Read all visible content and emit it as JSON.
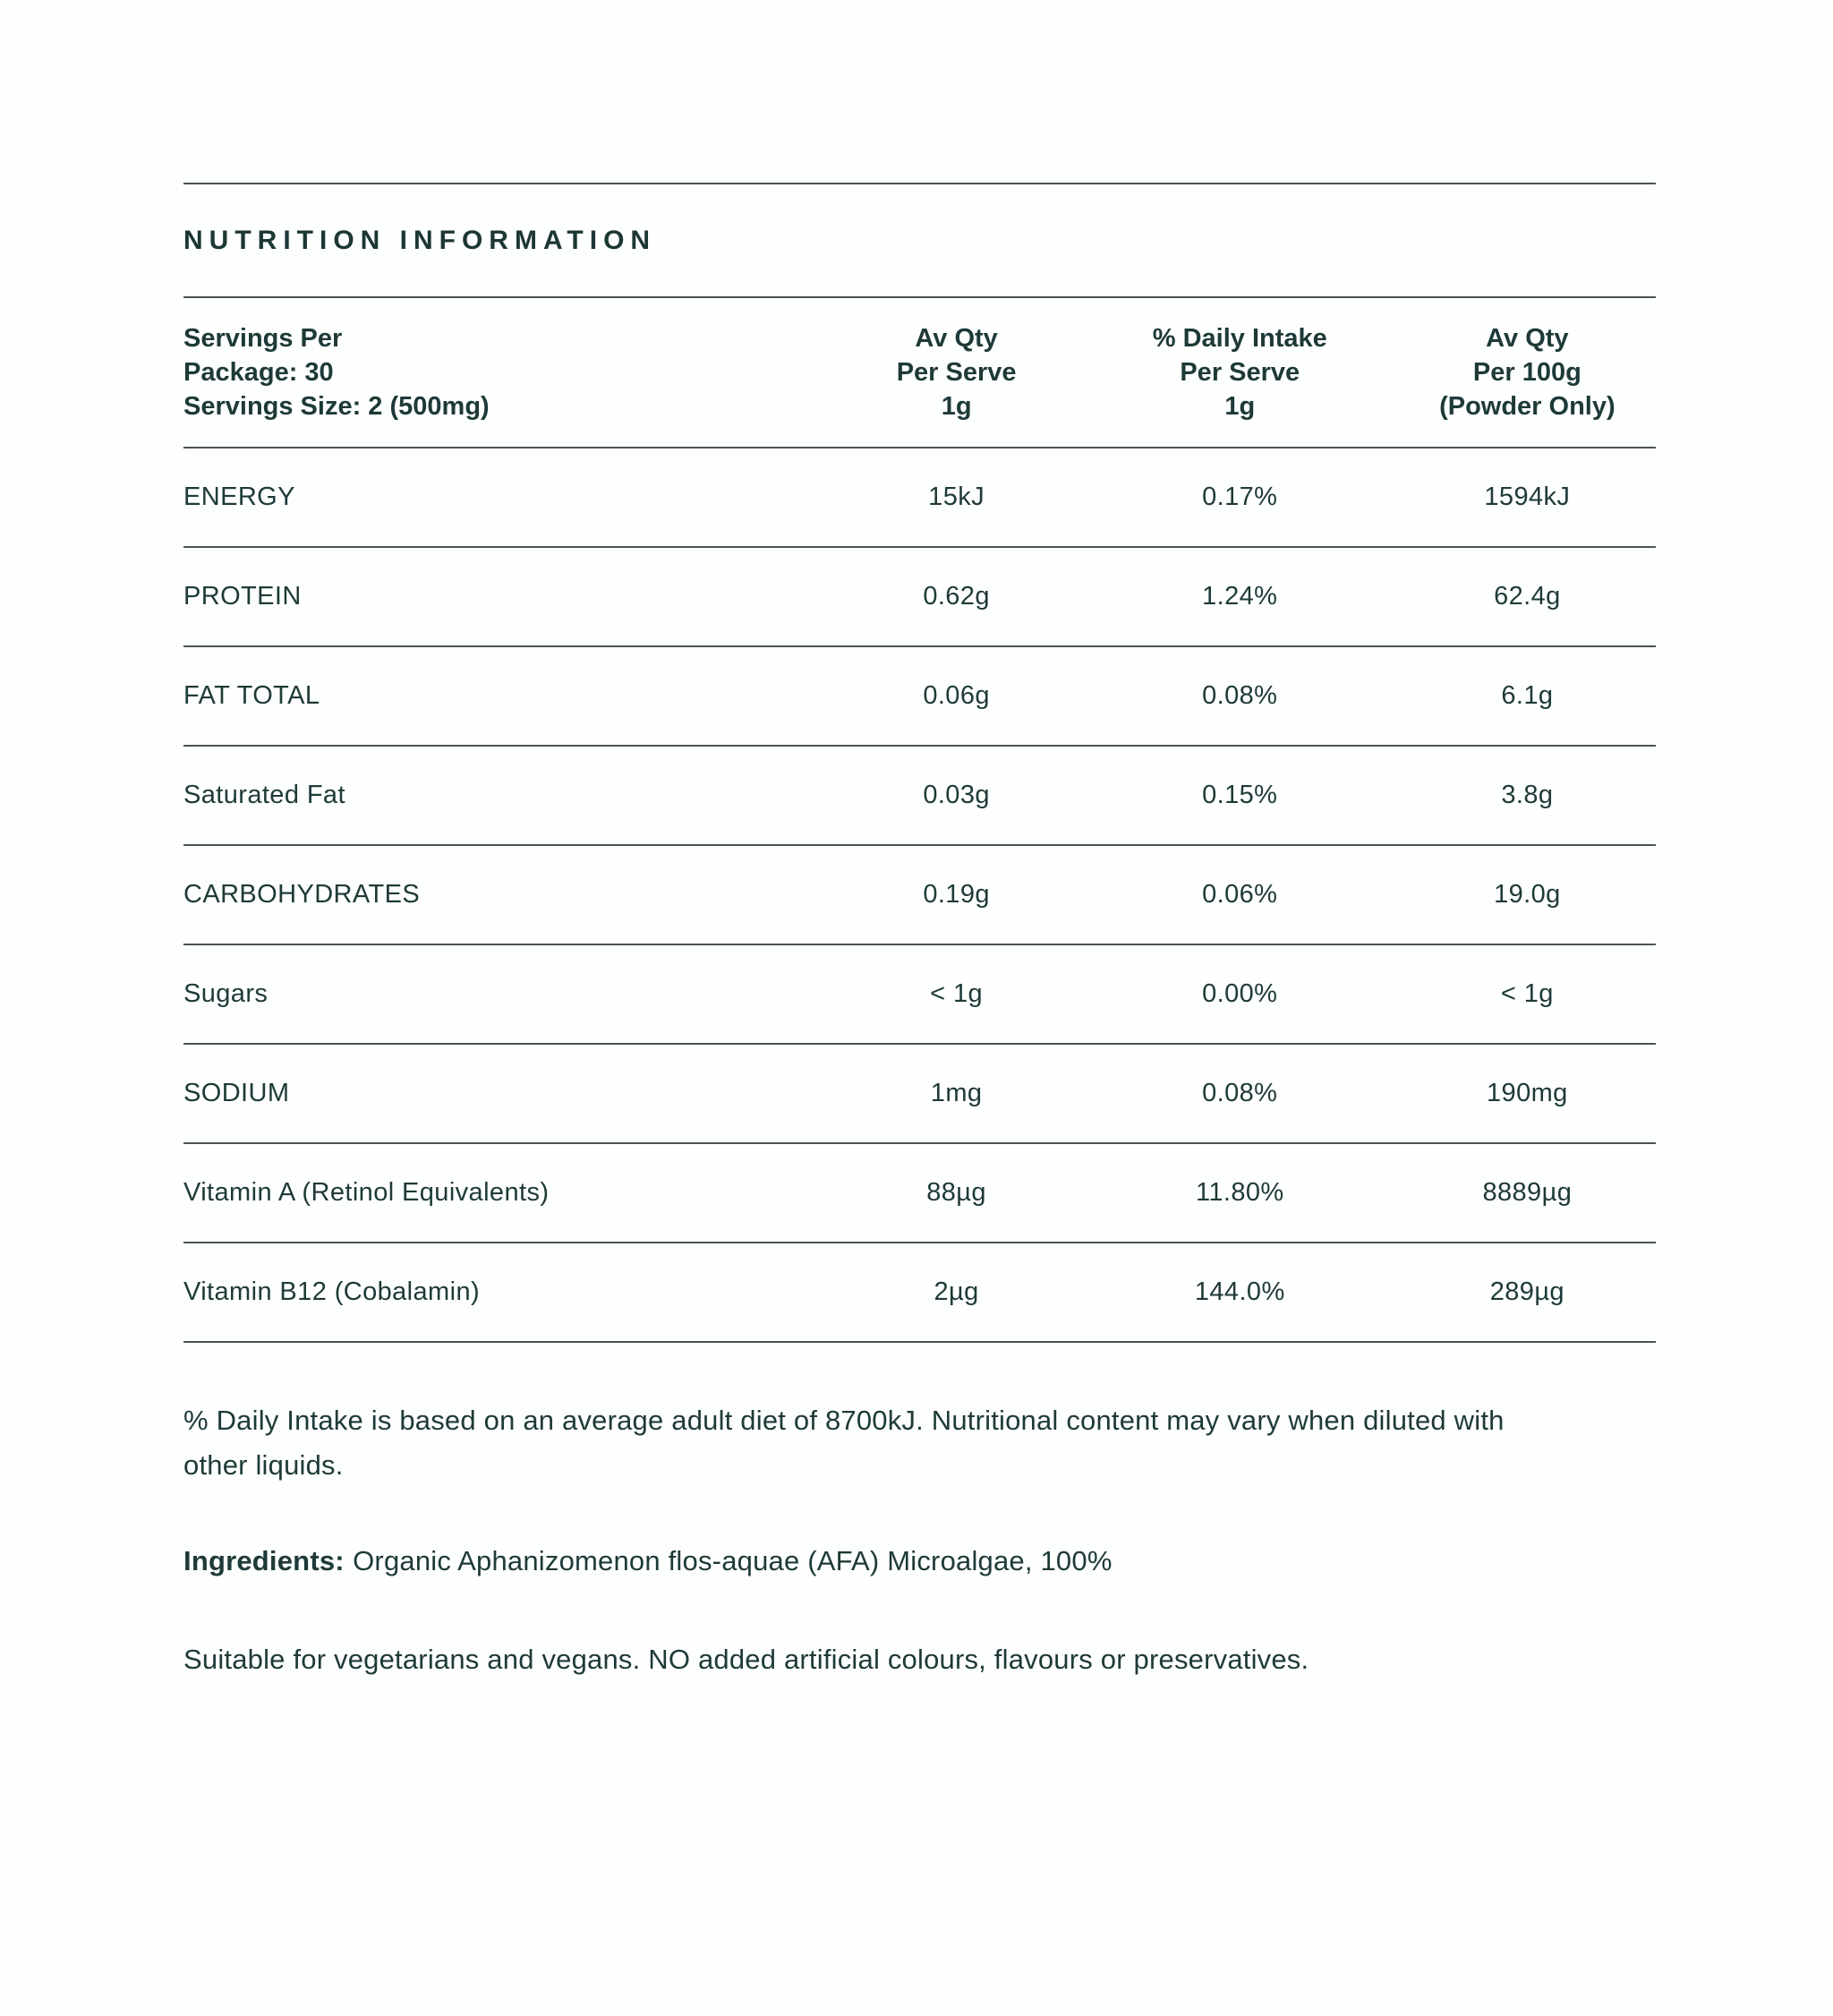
{
  "page": {
    "title": "NUTRITION INFORMATION",
    "text_color": "#1e3a38",
    "line_color": "#4b5452",
    "background": "#fdfefe"
  },
  "table": {
    "header": {
      "col1_lines": [
        "Servings Per",
        "Package: 30",
        "Servings Size: 2 (500mg)"
      ],
      "col2_lines": [
        "Av Qty",
        "Per Serve",
        "1g"
      ],
      "col3_lines": [
        "% Daily Intake",
        "Per Serve",
        "1g"
      ],
      "col4_lines": [
        "Av Qty",
        "Per 100g",
        "(Powder Only)"
      ]
    },
    "rows": [
      {
        "label": "ENERGY",
        "per_serve": "15kJ",
        "daily_intake": "0.17%",
        "per_100g": "1594kJ"
      },
      {
        "label": "PROTEIN",
        "per_serve": "0.62g",
        "daily_intake": "1.24%",
        "per_100g": "62.4g"
      },
      {
        "label": "FAT TOTAL",
        "per_serve": "0.06g",
        "daily_intake": "0.08%",
        "per_100g": "6.1g"
      },
      {
        "label": "Saturated Fat",
        "per_serve": "0.03g",
        "daily_intake": "0.15%",
        "per_100g": "3.8g"
      },
      {
        "label": "CARBOHYDRATES",
        "per_serve": "0.19g",
        "daily_intake": "0.06%",
        "per_100g": "19.0g"
      },
      {
        "label": "Sugars",
        "per_serve": "< 1g",
        "daily_intake": "0.00%",
        "per_100g": "< 1g"
      },
      {
        "label": "SODIUM",
        "per_serve": "1mg",
        "daily_intake": "0.08%",
        "per_100g": "190mg"
      },
      {
        "label": "Vitamin A (Retinol Equivalents)",
        "per_serve": "88µg",
        "daily_intake": "11.80%",
        "per_100g": "8889µg"
      },
      {
        "label": "Vitamin B12 (Cobalamin)",
        "per_serve": "2µg",
        "daily_intake": "144.0%",
        "per_100g": "289µg"
      }
    ]
  },
  "footer": {
    "note_lines": [
      "% Daily Intake is based on an average adult diet of 8700kJ. Nutritional content may vary when diluted with",
      "other liquids."
    ],
    "ingredients_label": "Ingredients:",
    "ingredients_text": "Organic Aphanizomenon flos-aquae (AFA) Microalgae, 100%",
    "suitability_note": "Suitable for vegetarians and vegans. NO added artificial colours, flavours or preservatives."
  }
}
